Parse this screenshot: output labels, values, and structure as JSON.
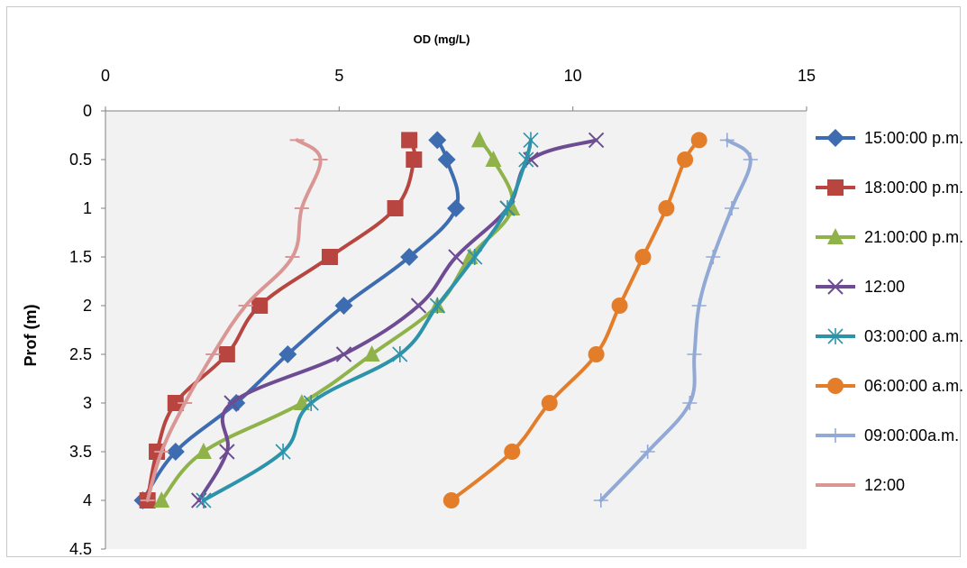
{
  "chart_data": {
    "type": "line",
    "xlabel": "OD (mg/L)",
    "ylabel": "Prof (m)",
    "xlim": [
      0,
      15
    ],
    "ylim": [
      0,
      4.5
    ],
    "x_axis_position": "top",
    "y_axis_inverted": true,
    "x_ticks": [
      "0",
      "5",
      "10",
      "15"
    ],
    "y_ticks": [
      "0",
      "0.5",
      "1",
      "1.5",
      "2",
      "2.5",
      "3",
      "3.5",
      "4",
      "4.5"
    ],
    "grid": false,
    "plot_background": "#f2f2f2",
    "legend_position": "right",
    "depth": [
      0.3,
      0.5,
      1.0,
      1.5,
      2.0,
      2.5,
      3.0,
      3.5,
      4.0
    ],
    "series": [
      {
        "name": "15:00:00 p.m.",
        "color": "#3d6cb1",
        "marker": "diamond",
        "od": [
          7.1,
          7.3,
          7.5,
          6.5,
          5.1,
          3.9,
          2.8,
          1.5,
          0.8
        ]
      },
      {
        "name": "18:00:00 p.m.",
        "color": "#b8453f",
        "marker": "square",
        "od": [
          6.5,
          6.6,
          6.2,
          4.8,
          3.3,
          2.6,
          1.5,
          1.1,
          0.9
        ]
      },
      {
        "name": "21:00:00 p.m.",
        "color": "#8fb34a",
        "marker": "triangle",
        "od": [
          8.0,
          8.3,
          8.7,
          7.8,
          7.1,
          5.7,
          4.2,
          2.1,
          1.2
        ]
      },
      {
        "name": "12:00",
        "color": "#6e4c94",
        "marker": "x",
        "od": [
          10.5,
          9.1,
          8.6,
          7.5,
          6.7,
          5.1,
          2.7,
          2.6,
          2.0
        ]
      },
      {
        "name": "03:00:00 a.m.",
        "color": "#2d93aa",
        "marker": "asterisk",
        "od": [
          9.1,
          9.0,
          8.6,
          7.9,
          7.1,
          6.3,
          4.4,
          3.8,
          2.1
        ]
      },
      {
        "name": "06:00:00 a.m.",
        "color": "#e47d2a",
        "marker": "circle",
        "od": [
          12.7,
          12.4,
          12.0,
          11.5,
          11.0,
          10.5,
          9.5,
          8.7,
          7.4
        ]
      },
      {
        "name": "09:00:00a.m.",
        "color": "#92a9d6",
        "marker": "plus",
        "od": [
          13.3,
          13.8,
          13.4,
          13.0,
          12.7,
          12.6,
          12.5,
          11.6,
          10.6
        ]
      },
      {
        "name": "12:00",
        "color": "#d99694",
        "marker": "dash",
        "od": [
          4.1,
          4.6,
          4.2,
          4.0,
          3.0,
          2.3,
          1.7,
          1.2,
          0.9
        ]
      }
    ]
  }
}
